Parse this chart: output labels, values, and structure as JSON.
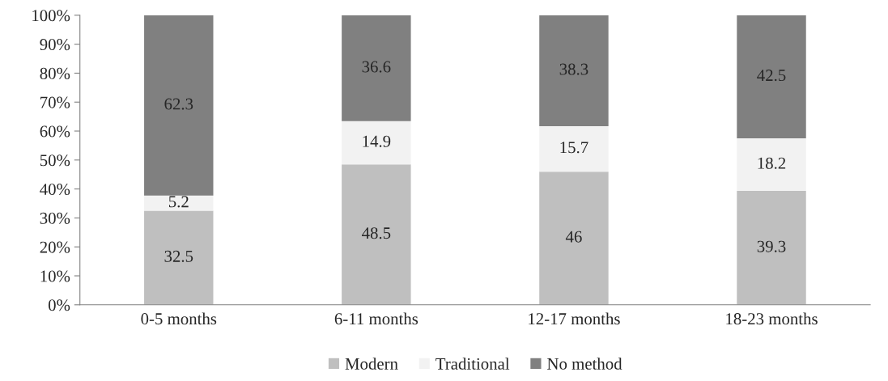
{
  "chart_data": {
    "type": "bar",
    "stacked": true,
    "categories": [
      "0-5 months",
      "6-11 months",
      "12-17 months",
      "18-23 months"
    ],
    "series": [
      {
        "name": "Modern",
        "color": "#bfbfbf",
        "values": [
          32.5,
          48.5,
          46,
          39.3
        ]
      },
      {
        "name": "Traditional",
        "color": "#f2f2f2",
        "values": [
          5.2,
          14.9,
          15.7,
          18.2
        ]
      },
      {
        "name": "No method",
        "color": "#808080",
        "values": [
          62.3,
          36.6,
          38.3,
          42.5
        ]
      }
    ],
    "ylim": [
      0,
      100
    ],
    "yticks": [
      {
        "value": 0,
        "label": "0%"
      },
      {
        "value": 10,
        "label": "10%"
      },
      {
        "value": 20,
        "label": "20%"
      },
      {
        "value": 30,
        "label": "30%"
      },
      {
        "value": 40,
        "label": "40%"
      },
      {
        "value": 50,
        "label": "50%"
      },
      {
        "value": 60,
        "label": "60%"
      },
      {
        "value": 70,
        "label": "70%"
      },
      {
        "value": 80,
        "label": "80%"
      },
      {
        "value": 90,
        "label": "90%"
      },
      {
        "value": 100,
        "label": "100%"
      }
    ],
    "data_labels": true,
    "grid": false,
    "legend": "bottom"
  }
}
